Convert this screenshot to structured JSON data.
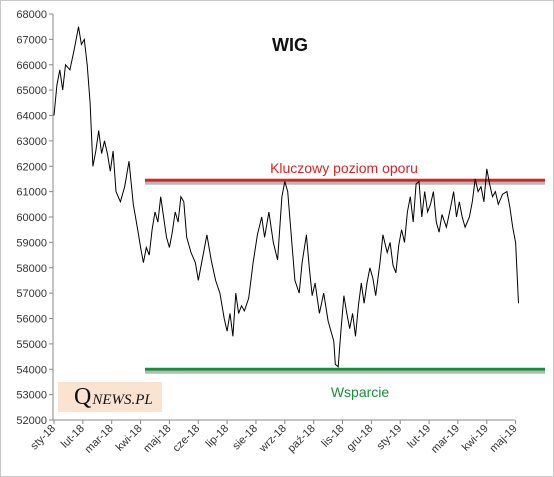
{
  "chart_data": {
    "type": "line",
    "title": "WIG",
    "xlabel": "",
    "ylabel": "",
    "ylim": [
      52000,
      68000
    ],
    "y_ticks": [
      52000,
      53000,
      54000,
      55000,
      56000,
      57000,
      58000,
      59000,
      60000,
      61000,
      62000,
      63000,
      64000,
      65000,
      66000,
      67000,
      68000
    ],
    "x_ticks": [
      "sty-18",
      "lut-18",
      "mar-18",
      "kwi-18",
      "maj-18",
      "cze-18",
      "lip-18",
      "sie-18",
      "wrz-18",
      "paź-18",
      "lis-18",
      "gru-18",
      "sty-19",
      "lut-19",
      "mar-19",
      "kwi-19",
      "maj-19"
    ],
    "grid": false,
    "legend": "none",
    "series": [
      {
        "color": "#000000",
        "points": [
          [
            0.0,
            64000
          ],
          [
            0.1,
            65200
          ],
          [
            0.2,
            65800
          ],
          [
            0.3,
            65000
          ],
          [
            0.4,
            66000
          ],
          [
            0.55,
            65800
          ],
          [
            0.7,
            66600
          ],
          [
            0.8,
            67200
          ],
          [
            0.85,
            67500
          ],
          [
            0.95,
            66800
          ],
          [
            1.05,
            67000
          ],
          [
            1.15,
            66000
          ],
          [
            1.25,
            64500
          ],
          [
            1.35,
            62000
          ],
          [
            1.45,
            62600
          ],
          [
            1.55,
            63400
          ],
          [
            1.65,
            62500
          ],
          [
            1.75,
            63000
          ],
          [
            1.85,
            62500
          ],
          [
            1.95,
            61800
          ],
          [
            2.05,
            62600
          ],
          [
            2.15,
            61000
          ],
          [
            2.3,
            60600
          ],
          [
            2.45,
            61200
          ],
          [
            2.6,
            62200
          ],
          [
            2.75,
            60500
          ],
          [
            2.9,
            59500
          ],
          [
            3.0,
            58800
          ],
          [
            3.1,
            58200
          ],
          [
            3.2,
            58800
          ],
          [
            3.3,
            58500
          ],
          [
            3.4,
            59500
          ],
          [
            3.5,
            60200
          ],
          [
            3.6,
            59800
          ],
          [
            3.7,
            60800
          ],
          [
            3.8,
            60000
          ],
          [
            3.9,
            59200
          ],
          [
            4.0,
            58800
          ],
          [
            4.1,
            59400
          ],
          [
            4.2,
            60200
          ],
          [
            4.3,
            59800
          ],
          [
            4.4,
            60800
          ],
          [
            4.5,
            60600
          ],
          [
            4.6,
            59200
          ],
          [
            4.75,
            58600
          ],
          [
            4.9,
            58200
          ],
          [
            5.0,
            57500
          ],
          [
            5.15,
            58400
          ],
          [
            5.3,
            59300
          ],
          [
            5.45,
            58300
          ],
          [
            5.6,
            57500
          ],
          [
            5.75,
            57000
          ],
          [
            5.9,
            56000
          ],
          [
            6.0,
            55500
          ],
          [
            6.1,
            56200
          ],
          [
            6.2,
            55300
          ],
          [
            6.3,
            57000
          ],
          [
            6.4,
            56200
          ],
          [
            6.5,
            56500
          ],
          [
            6.6,
            56300
          ],
          [
            6.75,
            56800
          ],
          [
            6.9,
            58200
          ],
          [
            7.05,
            59300
          ],
          [
            7.2,
            60000
          ],
          [
            7.3,
            59200
          ],
          [
            7.45,
            60200
          ],
          [
            7.6,
            59000
          ],
          [
            7.75,
            58300
          ],
          [
            7.9,
            60800
          ],
          [
            8.0,
            61400
          ],
          [
            8.1,
            61000
          ],
          [
            8.2,
            59600
          ],
          [
            8.35,
            57500
          ],
          [
            8.5,
            57000
          ],
          [
            8.6,
            58200
          ],
          [
            8.75,
            59300
          ],
          [
            8.85,
            58000
          ],
          [
            8.95,
            56900
          ],
          [
            9.05,
            57400
          ],
          [
            9.2,
            56200
          ],
          [
            9.35,
            57000
          ],
          [
            9.5,
            55900
          ],
          [
            9.6,
            55500
          ],
          [
            9.7,
            55100
          ],
          [
            9.75,
            54200
          ],
          [
            9.85,
            54100
          ],
          [
            9.95,
            55600
          ],
          [
            10.05,
            56900
          ],
          [
            10.15,
            56200
          ],
          [
            10.25,
            55600
          ],
          [
            10.35,
            56200
          ],
          [
            10.45,
            55300
          ],
          [
            10.55,
            56500
          ],
          [
            10.65,
            57400
          ],
          [
            10.75,
            56600
          ],
          [
            10.85,
            57400
          ],
          [
            10.95,
            58000
          ],
          [
            11.05,
            57600
          ],
          [
            11.15,
            56900
          ],
          [
            11.3,
            58200
          ],
          [
            11.4,
            59300
          ],
          [
            11.55,
            58600
          ],
          [
            11.65,
            59000
          ],
          [
            11.75,
            58100
          ],
          [
            11.85,
            57800
          ],
          [
            11.95,
            58900
          ],
          [
            12.05,
            59500
          ],
          [
            12.15,
            59000
          ],
          [
            12.25,
            60200
          ],
          [
            12.35,
            60800
          ],
          [
            12.45,
            59800
          ],
          [
            12.55,
            61300
          ],
          [
            12.65,
            61400
          ],
          [
            12.75,
            60000
          ],
          [
            12.85,
            61000
          ],
          [
            12.95,
            60200
          ],
          [
            13.05,
            60500
          ],
          [
            13.15,
            61000
          ],
          [
            13.25,
            59800
          ],
          [
            13.35,
            59400
          ],
          [
            13.45,
            60100
          ],
          [
            13.6,
            59600
          ],
          [
            13.75,
            60400
          ],
          [
            13.85,
            61000
          ],
          [
            13.95,
            60000
          ],
          [
            14.05,
            60600
          ],
          [
            14.15,
            60000
          ],
          [
            14.25,
            59600
          ],
          [
            14.4,
            60000
          ],
          [
            14.5,
            60600
          ],
          [
            14.6,
            61500
          ],
          [
            14.7,
            61000
          ],
          [
            14.8,
            61200
          ],
          [
            14.9,
            60600
          ],
          [
            15.0,
            61900
          ],
          [
            15.1,
            61300
          ],
          [
            15.2,
            60800
          ],
          [
            15.3,
            61000
          ],
          [
            15.4,
            60500
          ],
          [
            15.55,
            60900
          ],
          [
            15.7,
            61000
          ],
          [
            15.8,
            60400
          ],
          [
            15.9,
            59600
          ],
          [
            16.0,
            59000
          ],
          [
            16.1,
            56600
          ]
        ]
      }
    ],
    "annotations": [
      {
        "text": "Kluczowy poziom oporu",
        "level": 61450,
        "color": "#e02020"
      },
      {
        "text": "Wsparcie",
        "level": 54000,
        "color": "#1a8f3a"
      }
    ]
  },
  "logo": {
    "q": "Q",
    "rest": "NEWS.PL"
  }
}
